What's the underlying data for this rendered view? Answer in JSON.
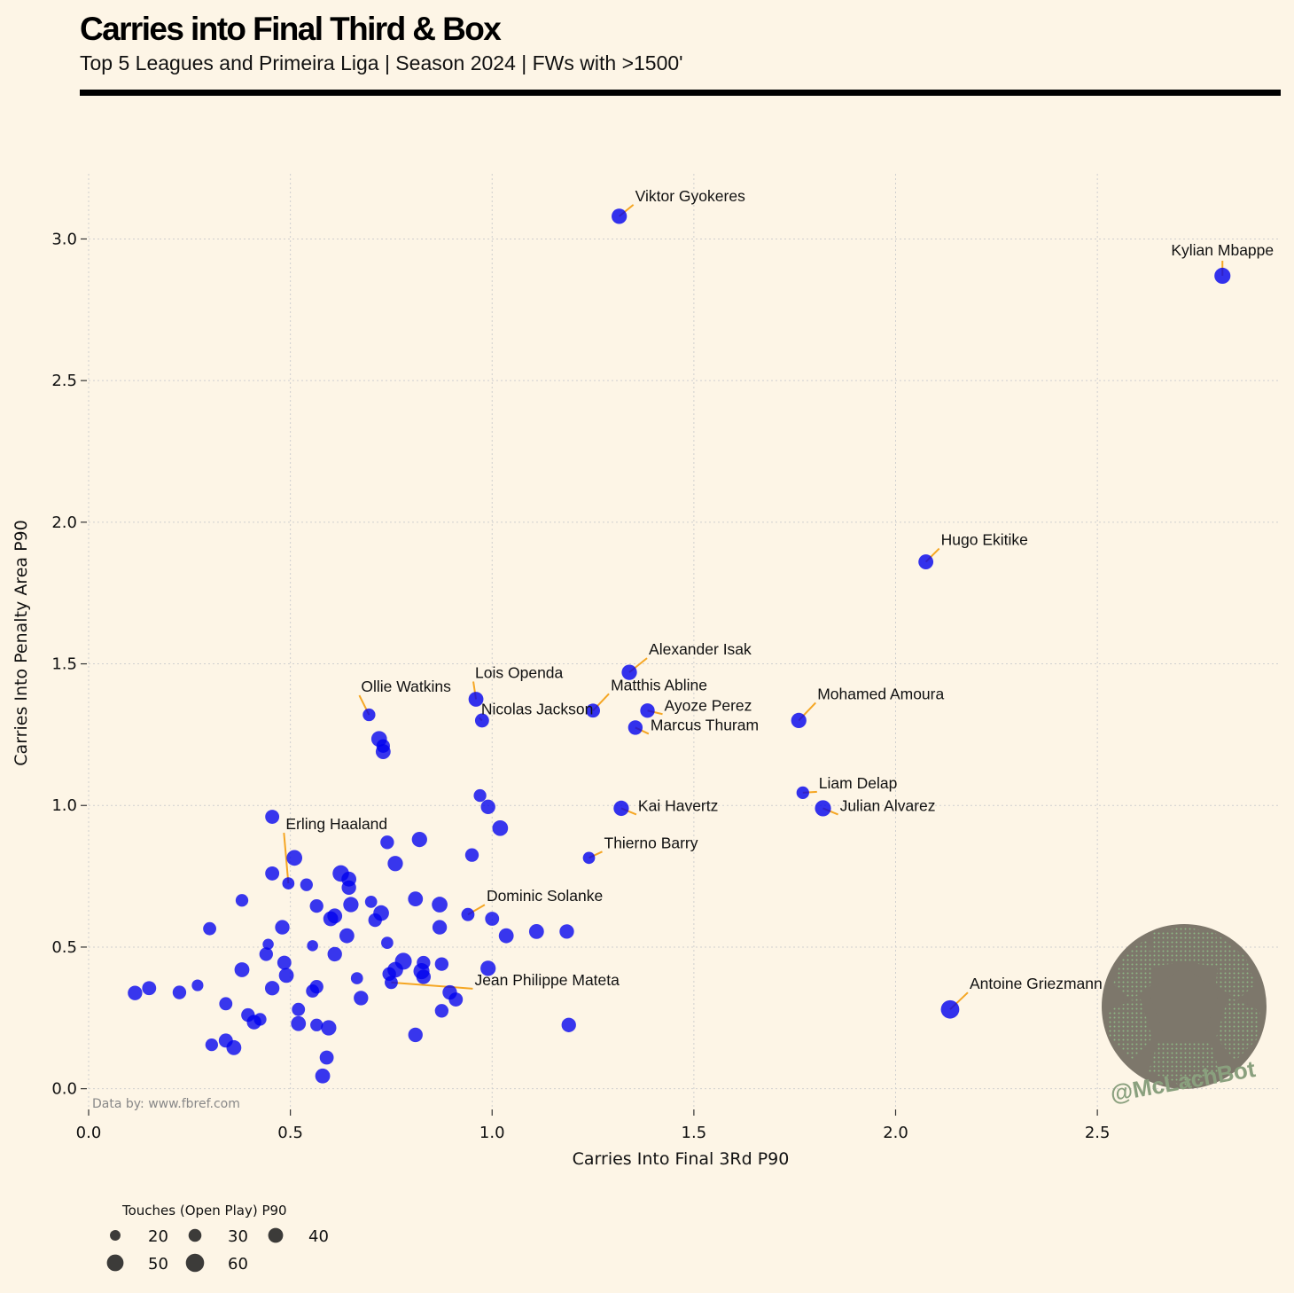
{
  "header": {
    "title": "Carries into Final Third & Box",
    "subtitle": "Top 5 Leagues and Primeira Liga | Season 2024 | FWs with >1500'"
  },
  "credit": "Data by: www.fbref.com",
  "watermark": {
    "handle": "@McLachBot",
    "icon": "soccer-ball-icon"
  },
  "colors": {
    "background": "#fdf5e6",
    "points": "#0000ee",
    "leader": "#f5a623",
    "grid": "#cfcfcf"
  },
  "chart_data": {
    "type": "scatter",
    "title": "Carries into Final Third & Box",
    "xlabel": "Carries Into Final 3Rd P90",
    "ylabel": "Carries Into Penalty Area P90",
    "xlim": [
      0.0,
      2.95
    ],
    "ylim": [
      -0.07,
      3.23
    ],
    "xticks": [
      0.0,
      0.5,
      1.0,
      1.5,
      2.0,
      2.5
    ],
    "xtick_labels": [
      "0.0",
      "0.5",
      "1.0",
      "1.5",
      "2.0",
      "2.5"
    ],
    "yticks": [
      0.0,
      0.5,
      1.0,
      1.5,
      2.0,
      2.5,
      3.0
    ],
    "ytick_labels": [
      "0.0",
      "0.5",
      "1.0",
      "1.5",
      "2.0",
      "2.5",
      "3.0"
    ],
    "grid": true,
    "size_legend": {
      "title": "Touches (Open Play) P90",
      "values": [
        20,
        30,
        40,
        50,
        60
      ],
      "labels": [
        "20",
        "30",
        "40",
        "50",
        "60"
      ],
      "placement": "bottom-left"
    },
    "labeled_points": [
      {
        "name": "Viktor Gyokeres",
        "x": 1.315,
        "y": 3.08,
        "touches": 38
      },
      {
        "name": "Kylian Mbappe",
        "x": 2.81,
        "y": 2.87,
        "touches": 42
      },
      {
        "name": "Hugo Ekitike",
        "x": 2.075,
        "y": 1.86,
        "touches": 36
      },
      {
        "name": "Alexander Isak",
        "x": 1.34,
        "y": 1.47,
        "touches": 38
      },
      {
        "name": "Lois Openda",
        "x": 0.96,
        "y": 1.375,
        "touches": 36
      },
      {
        "name": "Matthis Abline",
        "x": 1.25,
        "y": 1.335,
        "touches": 32
      },
      {
        "name": "Ollie Watkins",
        "x": 0.695,
        "y": 1.32,
        "touches": 26
      },
      {
        "name": "Ayoze Perez",
        "x": 1.385,
        "y": 1.335,
        "touches": 34
      },
      {
        "name": "Nicolas Jackson",
        "x": 0.975,
        "y": 1.3,
        "touches": 32
      },
      {
        "name": "Mohamed Amoura",
        "x": 1.76,
        "y": 1.3,
        "touches": 38
      },
      {
        "name": "Marcus Thuram",
        "x": 1.355,
        "y": 1.275,
        "touches": 34
      },
      {
        "name": "Liam Delap",
        "x": 1.77,
        "y": 1.045,
        "touches": 26
      },
      {
        "name": "Julian Alvarez",
        "x": 1.82,
        "y": 0.99,
        "touches": 42
      },
      {
        "name": "Kai Havertz",
        "x": 1.32,
        "y": 0.99,
        "touches": 38
      },
      {
        "name": "Thierno Barry",
        "x": 1.24,
        "y": 0.815,
        "touches": 24
      },
      {
        "name": "Erling Haaland",
        "x": 0.495,
        "y": 0.725,
        "touches": 24
      },
      {
        "name": "Dominic Solanke",
        "x": 0.94,
        "y": 0.615,
        "touches": 28
      },
      {
        "name": "Jean Philippe Mateta",
        "x": 0.75,
        "y": 0.375,
        "touches": 28
      },
      {
        "name": "Antoine Griezmann",
        "x": 2.135,
        "y": 0.28,
        "touches": 55
      }
    ],
    "points": [
      {
        "x": 0.72,
        "y": 1.235,
        "touches": 40
      },
      {
        "x": 0.73,
        "y": 1.21,
        "touches": 30
      },
      {
        "x": 0.73,
        "y": 1.19,
        "touches": 36
      },
      {
        "x": 0.97,
        "y": 1.035,
        "touches": 26
      },
      {
        "x": 0.99,
        "y": 0.995,
        "touches": 34
      },
      {
        "x": 1.02,
        "y": 0.92,
        "touches": 40
      },
      {
        "x": 0.455,
        "y": 0.96,
        "touches": 32
      },
      {
        "x": 0.82,
        "y": 0.88,
        "touches": 38
      },
      {
        "x": 0.74,
        "y": 0.87,
        "touches": 30
      },
      {
        "x": 0.51,
        "y": 0.815,
        "touches": 40
      },
      {
        "x": 0.95,
        "y": 0.825,
        "touches": 30
      },
      {
        "x": 0.76,
        "y": 0.795,
        "touches": 38
      },
      {
        "x": 0.455,
        "y": 0.76,
        "touches": 32
      },
      {
        "x": 0.625,
        "y": 0.76,
        "touches": 44
      },
      {
        "x": 0.645,
        "y": 0.74,
        "touches": 36
      },
      {
        "x": 0.645,
        "y": 0.71,
        "touches": 34
      },
      {
        "x": 0.54,
        "y": 0.72,
        "touches": 26
      },
      {
        "x": 0.38,
        "y": 0.665,
        "touches": 26
      },
      {
        "x": 0.81,
        "y": 0.67,
        "touches": 36
      },
      {
        "x": 0.7,
        "y": 0.66,
        "touches": 24
      },
      {
        "x": 0.65,
        "y": 0.65,
        "touches": 38
      },
      {
        "x": 0.87,
        "y": 0.65,
        "touches": 40
      },
      {
        "x": 0.565,
        "y": 0.645,
        "touches": 30
      },
      {
        "x": 0.725,
        "y": 0.62,
        "touches": 40
      },
      {
        "x": 0.61,
        "y": 0.61,
        "touches": 36
      },
      {
        "x": 0.6,
        "y": 0.6,
        "touches": 36
      },
      {
        "x": 1.0,
        "y": 0.6,
        "touches": 32
      },
      {
        "x": 0.71,
        "y": 0.595,
        "touches": 30
      },
      {
        "x": 0.48,
        "y": 0.57,
        "touches": 34
      },
      {
        "x": 0.87,
        "y": 0.57,
        "touches": 34
      },
      {
        "x": 0.3,
        "y": 0.565,
        "touches": 28
      },
      {
        "x": 1.185,
        "y": 0.555,
        "touches": 34
      },
      {
        "x": 1.11,
        "y": 0.555,
        "touches": 36
      },
      {
        "x": 1.035,
        "y": 0.54,
        "touches": 36
      },
      {
        "x": 0.64,
        "y": 0.54,
        "touches": 36
      },
      {
        "x": 0.74,
        "y": 0.515,
        "touches": 24
      },
      {
        "x": 0.445,
        "y": 0.51,
        "touches": 20
      },
      {
        "x": 0.555,
        "y": 0.505,
        "touches": 20
      },
      {
        "x": 0.44,
        "y": 0.475,
        "touches": 30
      },
      {
        "x": 0.61,
        "y": 0.475,
        "touches": 34
      },
      {
        "x": 0.78,
        "y": 0.45,
        "touches": 46
      },
      {
        "x": 0.83,
        "y": 0.445,
        "touches": 30
      },
      {
        "x": 0.485,
        "y": 0.445,
        "touches": 32
      },
      {
        "x": 0.875,
        "y": 0.44,
        "touches": 30
      },
      {
        "x": 0.99,
        "y": 0.425,
        "touches": 38
      },
      {
        "x": 0.76,
        "y": 0.42,
        "touches": 40
      },
      {
        "x": 0.38,
        "y": 0.42,
        "touches": 36
      },
      {
        "x": 0.825,
        "y": 0.415,
        "touches": 42
      },
      {
        "x": 0.745,
        "y": 0.405,
        "touches": 30
      },
      {
        "x": 0.49,
        "y": 0.4,
        "touches": 36
      },
      {
        "x": 0.83,
        "y": 0.395,
        "touches": 34
      },
      {
        "x": 0.665,
        "y": 0.39,
        "touches": 24
      },
      {
        "x": 0.27,
        "y": 0.365,
        "touches": 22
      },
      {
        "x": 0.565,
        "y": 0.36,
        "touches": 30
      },
      {
        "x": 0.15,
        "y": 0.355,
        "touches": 32
      },
      {
        "x": 0.455,
        "y": 0.355,
        "touches": 34
      },
      {
        "x": 0.555,
        "y": 0.345,
        "touches": 28
      },
      {
        "x": 0.895,
        "y": 0.34,
        "touches": 34
      },
      {
        "x": 0.225,
        "y": 0.34,
        "touches": 30
      },
      {
        "x": 0.115,
        "y": 0.338,
        "touches": 34
      },
      {
        "x": 0.675,
        "y": 0.32,
        "touches": 34
      },
      {
        "x": 0.91,
        "y": 0.315,
        "touches": 32
      },
      {
        "x": 0.34,
        "y": 0.3,
        "touches": 28
      },
      {
        "x": 0.52,
        "y": 0.28,
        "touches": 28
      },
      {
        "x": 0.875,
        "y": 0.275,
        "touches": 30
      },
      {
        "x": 0.395,
        "y": 0.26,
        "touches": 30
      },
      {
        "x": 0.425,
        "y": 0.245,
        "touches": 26
      },
      {
        "x": 0.41,
        "y": 0.235,
        "touches": 34
      },
      {
        "x": 0.52,
        "y": 0.23,
        "touches": 36
      },
      {
        "x": 0.565,
        "y": 0.225,
        "touches": 26
      },
      {
        "x": 1.19,
        "y": 0.225,
        "touches": 34
      },
      {
        "x": 0.595,
        "y": 0.215,
        "touches": 38
      },
      {
        "x": 0.81,
        "y": 0.19,
        "touches": 34
      },
      {
        "x": 0.34,
        "y": 0.17,
        "touches": 32
      },
      {
        "x": 0.305,
        "y": 0.155,
        "touches": 26
      },
      {
        "x": 0.36,
        "y": 0.145,
        "touches": 36
      },
      {
        "x": 0.59,
        "y": 0.11,
        "touches": 32
      },
      {
        "x": 0.58,
        "y": 0.045,
        "touches": 36
      }
    ]
  }
}
